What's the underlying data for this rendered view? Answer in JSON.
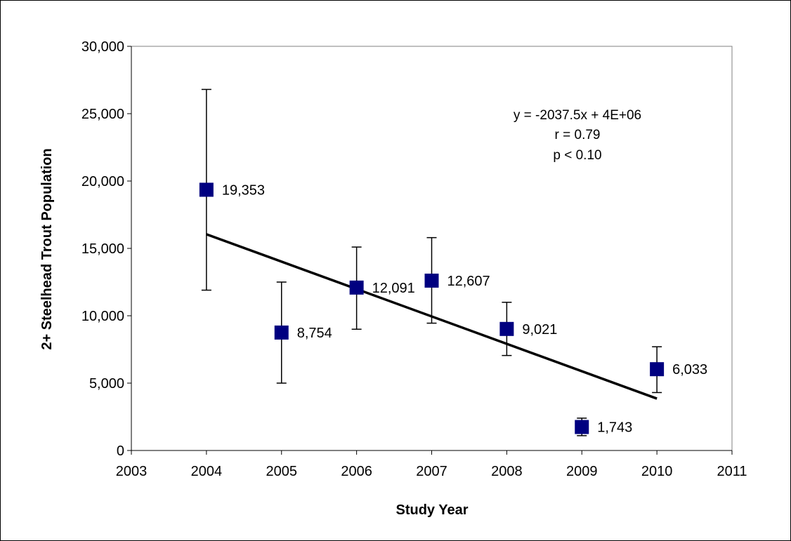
{
  "chart_data": {
    "type": "scatter",
    "title": "",
    "xlabel": "Study Year",
    "ylabel": "2+ Steelhead Trout Population",
    "xlim": [
      2003,
      2011
    ],
    "ylim": [
      0,
      30000
    ],
    "x_ticks": [
      2003,
      2004,
      2005,
      2006,
      2007,
      2008,
      2009,
      2010,
      2011
    ],
    "x_tick_labels": [
      "2003",
      "2004",
      "2005",
      "2006",
      "2007",
      "2008",
      "2009",
      "2010",
      "2011"
    ],
    "y_ticks": [
      0,
      5000,
      10000,
      15000,
      20000,
      25000,
      30000
    ],
    "y_tick_labels": [
      "0",
      "5,000",
      "10,000",
      "15,000",
      "20,000",
      "25,000",
      "30,000"
    ],
    "grid": false,
    "marker_color": "#000080",
    "points": [
      {
        "x": 2004,
        "y": 19353,
        "label": "19,353",
        "err_low": 11900,
        "err_high": 26800
      },
      {
        "x": 2005,
        "y": 8754,
        "label": "8,754",
        "err_low": 5000,
        "err_high": 12500
      },
      {
        "x": 2006,
        "y": 12091,
        "label": "12,091",
        "err_low": 9000,
        "err_high": 15100
      },
      {
        "x": 2007,
        "y": 12607,
        "label": "12,607",
        "err_low": 9450,
        "err_high": 15800
      },
      {
        "x": 2008,
        "y": 9021,
        "label": "9,021",
        "err_low": 7050,
        "err_high": 11000
      },
      {
        "x": 2009,
        "y": 1743,
        "label": "1,743",
        "err_low": 1100,
        "err_high": 2400
      },
      {
        "x": 2010,
        "y": 6033,
        "label": "6,033",
        "err_low": 4300,
        "err_high": 7700
      }
    ],
    "trendline": {
      "x": [
        2004,
        2010
      ],
      "y": [
        16050,
        3850
      ],
      "equation": "y = -2037.5x + 4E+06",
      "r_text": "r = 0.79",
      "p_text": "p < 0.10"
    }
  }
}
